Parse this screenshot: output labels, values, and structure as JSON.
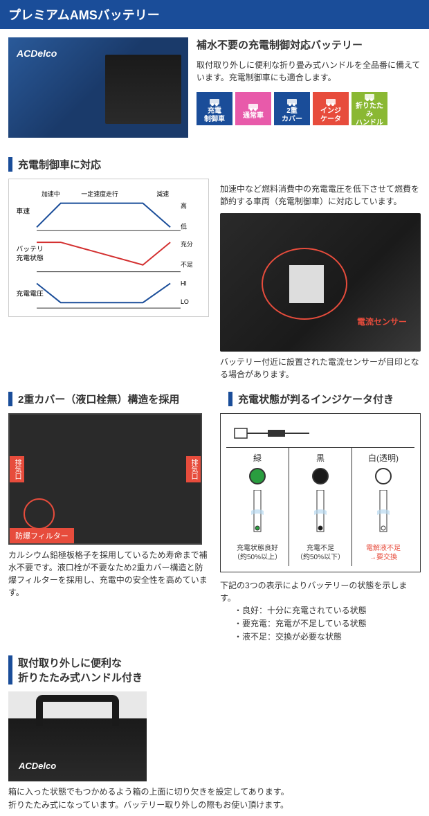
{
  "title": "プレミアムAMSバッテリー",
  "intro": {
    "heading": "補水不要の充電制御対応バッテリー",
    "description": "取付取り外しに便利な折り畳み式ハンドルを全品番に備えています。充電制御車にも適合します。"
  },
  "badges": [
    {
      "label": "充電\n制御車",
      "color": "#1a4d99"
    },
    {
      "label": "通常車",
      "color": "#e85aaa"
    },
    {
      "label": "2重\nカバー",
      "color": "#1a4d99"
    },
    {
      "label": "インジ\nケータ",
      "color": "#e74c3c"
    },
    {
      "label": "折りたたみ\nハンドル",
      "color": "#8ab833"
    }
  ],
  "section1": {
    "heading": "充電制御車に対応",
    "right_desc": "加速中など燃料消費中の充電電圧を低下させて燃費を節約する車両（充電制御車）に対応しています。",
    "sensor_label": "電流センサー",
    "bottom_caption": "バッテリー付近に設置された電流センサーが目印となる場合があります。",
    "chart_labels": {
      "y1": "車速",
      "y2": "バッテリ\n充電状態",
      "y3": "充電電圧",
      "x1": "加速中",
      "x2": "一定速度走行",
      "x3": "減速",
      "r1": "高",
      "r2": "低",
      "r3": "充分",
      "r4": "不足",
      "r5": "HI",
      "r6": "LO"
    }
  },
  "section2a": {
    "heading": "2重カバー（液口栓無）構造を採用",
    "vent_label": "排気口",
    "filter_label": "防爆フィルター",
    "description": "カルシウム鉛極板格子を採用しているため寿命まで補水不要です。液口栓が不要なため2重カバー構造と防爆フィルターを採用し、充電中の安全性を高めています。"
  },
  "section2b": {
    "heading": "充電状態が判るインジケータ付き",
    "colors": [
      {
        "label": "緑",
        "circle": "#2a9d3f",
        "status": "充電状態良好\n（約50%以上）"
      },
      {
        "label": "黒",
        "circle": "#1a1a1a",
        "status": "充電不足\n（約50%以下）"
      },
      {
        "label": "白(透明)",
        "circle": "#ffffff",
        "status": "電解液不足\n→要交換",
        "warn": true
      }
    ],
    "summary": "下記の3つの表示によりバッテリーの状態を示します。",
    "bullets": [
      "・良好：十分に充電されている状態",
      "・要充電：充電が不足している状態",
      "・液不足：交換が必要な状態"
    ]
  },
  "section3": {
    "heading": "取付取り外しに便利な\n折りたたみ式ハンドル付き",
    "description": "箱に入った状態でもつかめるよう箱の上面に切り欠きを設定してあります。\n折りたたみ式になっています。バッテリー取り外しの際もお使い頂けます。"
  }
}
